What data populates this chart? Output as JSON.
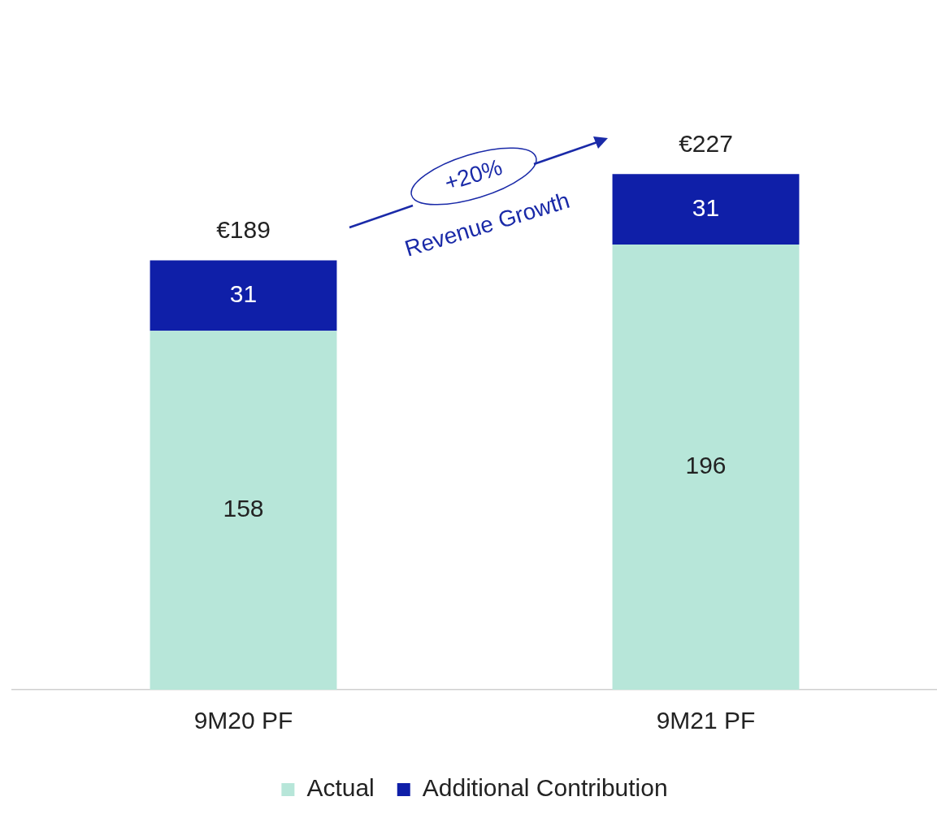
{
  "chart_data": {
    "type": "bar",
    "stacked": true,
    "categories": [
      "9M20 PF",
      "9M21 PF"
    ],
    "series": [
      {
        "name": "Actual",
        "color": "#b7e6d9",
        "values": [
          158,
          196
        ]
      },
      {
        "name": "Additional Contribution",
        "color": "#0f1fa8",
        "values": [
          31,
          31
        ]
      }
    ],
    "data_labels": true,
    "totals": [
      "€189",
      "€227"
    ],
    "legend": "bottom",
    "grid": false,
    "annotations": [
      "+20%",
      "Revenue Growth"
    ]
  }
}
